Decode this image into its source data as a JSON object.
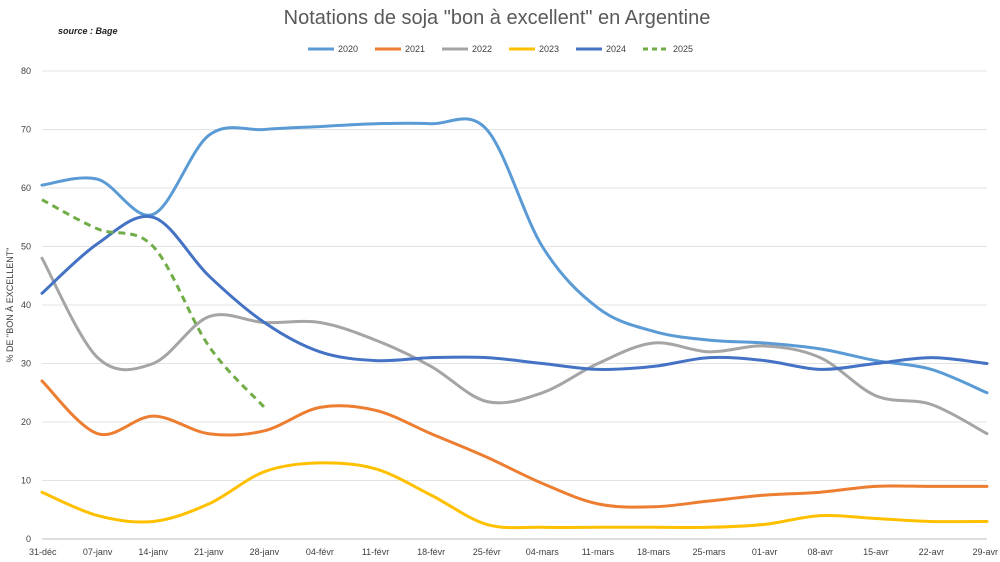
{
  "chart_data": {
    "type": "line",
    "title": "Notations de soja \"bon à excellent\" en Argentine",
    "source": "source : Bage",
    "ylabel": "% DE \"BON À EXCELLENT\"",
    "xlabel": "",
    "ylim": [
      0,
      80
    ],
    "yticks": [
      0,
      10,
      20,
      30,
      40,
      50,
      60,
      70,
      80
    ],
    "grid": true,
    "legend_position": "top",
    "categories": [
      "31-déc",
      "07-janv",
      "14-janv",
      "21-janv",
      "28-janv",
      "04-févr",
      "11-févr",
      "18-févr",
      "25-févr",
      "04-mars",
      "11-mars",
      "18-mars",
      "25-mars",
      "01-avr",
      "08-avr",
      "15-avr",
      "22-avr",
      "29-avr"
    ],
    "series": [
      {
        "name": "2020",
        "color": "#5B9BD5",
        "dashed": false,
        "values": [
          60.5,
          61.5,
          55.5,
          69,
          70,
          70.5,
          71,
          71,
          70,
          50,
          39.5,
          35.5,
          34,
          33.5,
          32.5,
          30.5,
          29,
          25
        ]
      },
      {
        "name": "2021",
        "color": "#ED7D31",
        "dashed": false,
        "values": [
          27,
          18,
          21,
          18,
          18.5,
          22.5,
          22,
          18,
          14,
          9.5,
          6,
          5.5,
          6.5,
          7.5,
          8,
          9,
          9,
          9
        ]
      },
      {
        "name": "2022",
        "color": "#A5A5A5",
        "dashed": false,
        "values": [
          48,
          31,
          30,
          38,
          37,
          37,
          34,
          29.5,
          23.5,
          25,
          30,
          33.5,
          32,
          33,
          31,
          24.5,
          23,
          18
        ]
      },
      {
        "name": "2023",
        "color": "#FFC000",
        "dashed": false,
        "values": [
          8,
          4,
          3,
          6,
          11.5,
          13,
          12,
          7.5,
          2.5,
          2,
          2,
          2,
          2,
          2.5,
          4,
          3.5,
          3,
          3
        ]
      },
      {
        "name": "2024",
        "color": "#4472C4",
        "dashed": false,
        "values": [
          42,
          50.5,
          55,
          45,
          37,
          32,
          30.5,
          31,
          31,
          30,
          29,
          29.5,
          31,
          30.5,
          29,
          30,
          31,
          30
        ]
      },
      {
        "name": "2025",
        "color": "#70AD47",
        "dashed": true,
        "values": [
          58,
          53,
          50,
          33,
          22.5,
          null,
          null,
          null,
          null,
          null,
          null,
          null,
          null,
          null,
          null,
          null,
          null,
          null
        ]
      }
    ]
  }
}
